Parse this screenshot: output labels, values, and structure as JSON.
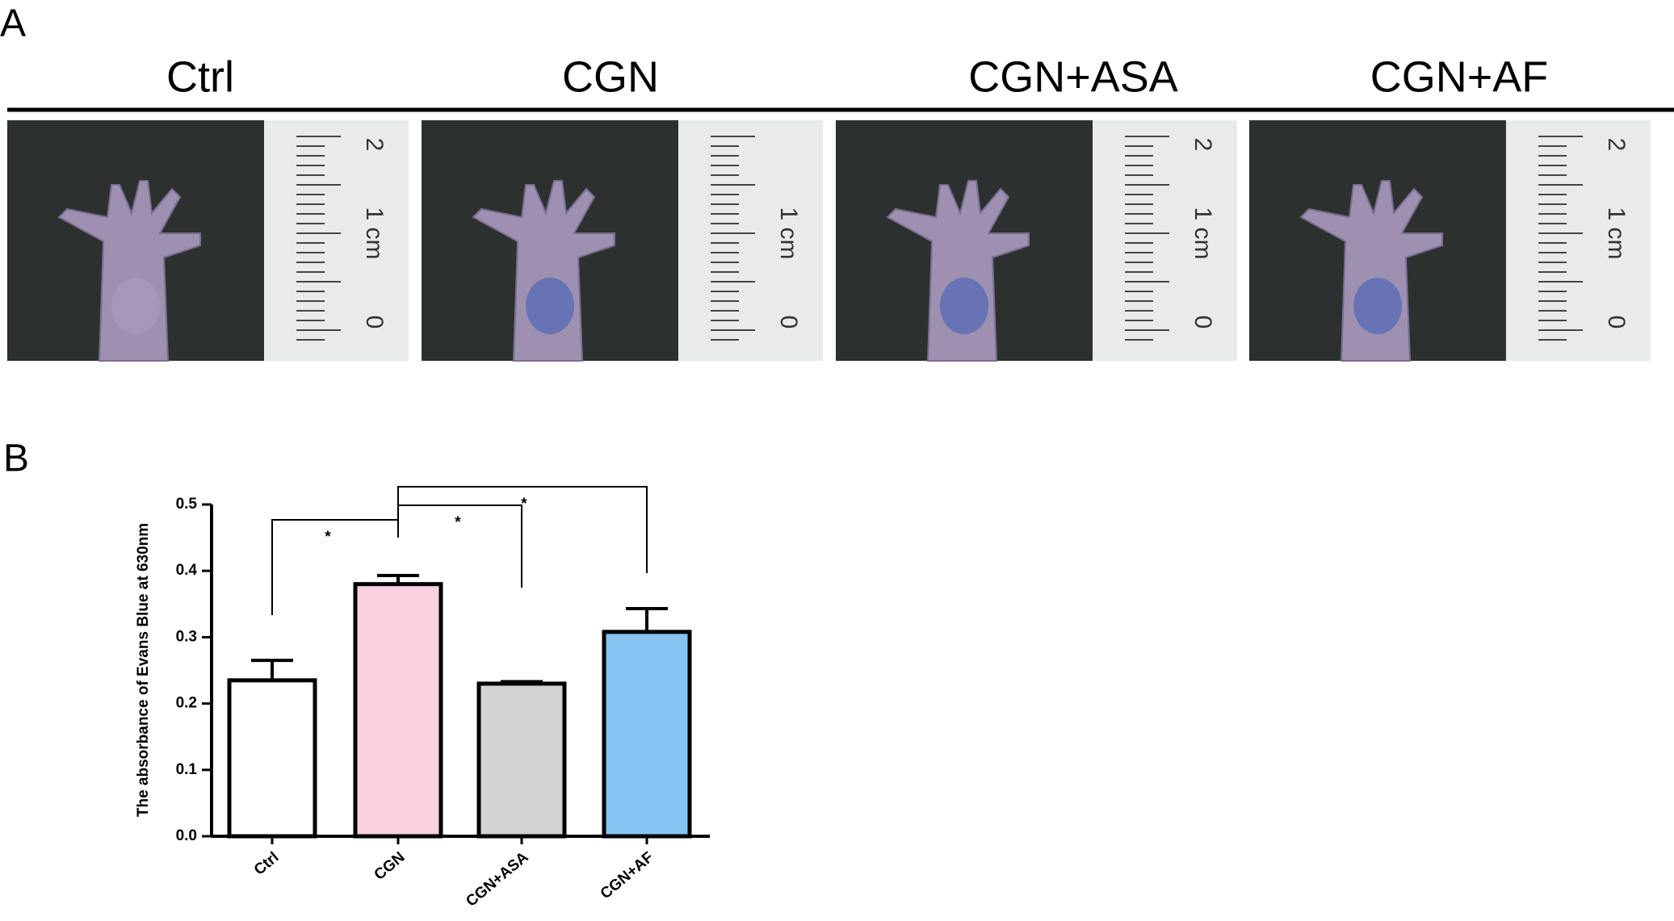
{
  "panel_a": {
    "label": "A",
    "groups": [
      {
        "title": "Ctrl",
        "ruler_labels": [
          "2",
          "1 cm",
          "0"
        ]
      },
      {
        "title": "CGN",
        "ruler_labels": [
          "1 cm",
          "0"
        ]
      },
      {
        "title": "CGN+ASA",
        "ruler_labels": [
          "2",
          "1 cm",
          "0"
        ]
      },
      {
        "title": "CGN+AF",
        "ruler_labels": [
          "2",
          "1 cm",
          "0"
        ]
      }
    ]
  },
  "chart_data": {
    "type": "bar",
    "panel_label": "B",
    "y_label": "The absorbance of Evans Blue at 630nm",
    "categories": [
      "Ctrl",
      "CGN",
      "CGN+ASA",
      "CGN+AF"
    ],
    "values": [
      0.235,
      0.38,
      0.23,
      0.308
    ],
    "errors": [
      0.03,
      0.013,
      0.003,
      0.035
    ],
    "colors": [
      "#ffffff",
      "#f9d0e0",
      "#d3d3d3",
      "#86c3f2"
    ],
    "ylim": [
      0,
      0.5
    ],
    "yticks": [
      {
        "value": 0,
        "label": "0.0"
      },
      0.1,
      0.2,
      0.3,
      0.4,
      0.5
    ],
    "annotations": [
      "*",
      "*",
      "*"
    ]
  }
}
